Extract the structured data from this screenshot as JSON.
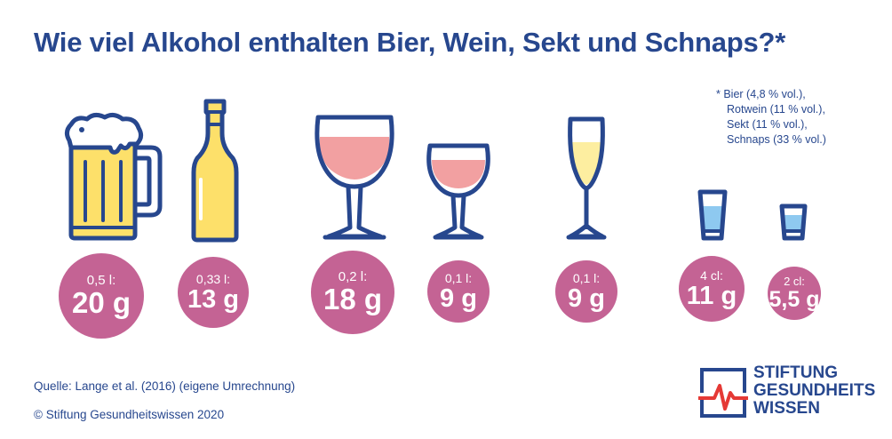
{
  "title": "Wie viel Alkohol enthalten Bier, Wein, Sekt und Schnaps?*",
  "footnote": {
    "lines": [
      "* Bier (4,8 % vol.),",
      "Rotwein (11 % vol.),",
      "Sekt (11 % vol.),",
      "Schnaps (33 % vol.)"
    ]
  },
  "colors": {
    "navy": "#27478e",
    "beer": "#fde06a",
    "redwine": "#f2a0a1",
    "champagne": "#fdeea0",
    "schnaps": "#8ec9f0",
    "bubble": "#c46394",
    "logo_red": "#e53935"
  },
  "drinks": [
    {
      "name": "Bier",
      "icon": "beer-mug-icon",
      "volume": "0,5 l:",
      "grams": "20 g"
    },
    {
      "name": "Bier",
      "icon": "beer-bottle-icon",
      "volume": "0,33 l:",
      "grams": "13 g"
    },
    {
      "name": "Rotwein",
      "icon": "large-wine-glass-icon",
      "volume": "0,2 l:",
      "grams": "18 g"
    },
    {
      "name": "Rotwein",
      "icon": "small-wine-glass-icon",
      "volume": "0,1 l:",
      "grams": "9 g"
    },
    {
      "name": "Sekt",
      "icon": "champagne-flute-icon",
      "volume": "0,1 l:",
      "grams": "9 g"
    },
    {
      "name": "Schnaps",
      "icon": "large-shot-glass-icon",
      "volume": "4 cl:",
      "grams": "11 g"
    },
    {
      "name": "Schnaps",
      "icon": "small-shot-glass-icon",
      "volume": "2 cl:",
      "grams": "5,5 g"
    }
  ],
  "source": "Quelle: Lange et al. (2016) (eigene Umrechnung)",
  "copyright": "© Stiftung Gesundheitswissen 2020",
  "logo": {
    "icon": "heartbeat-logo-icon",
    "lines": [
      "STIFTUNG",
      "GESUNDHEITS",
      "WISSEN"
    ]
  }
}
